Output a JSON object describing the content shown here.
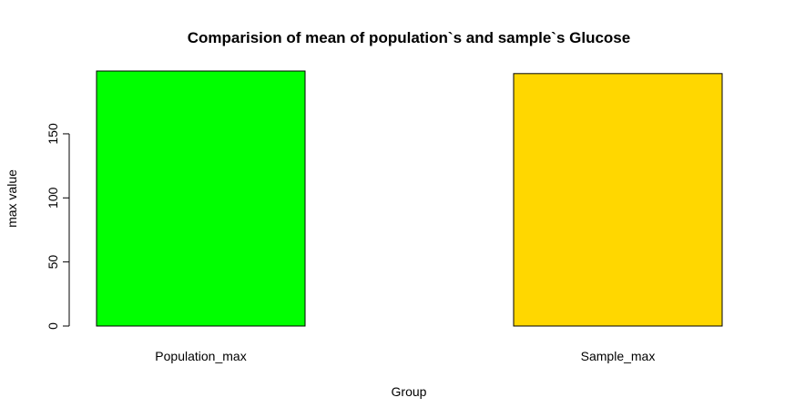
{
  "chart_data": {
    "type": "bar",
    "title": "Comparision of mean of population`s and sample`s Glucose",
    "xlabel": "Group",
    "ylabel": "max value",
    "categories": [
      "Population_max",
      "Sample_max"
    ],
    "values": [
      199,
      197
    ],
    "colors": [
      "#00ff00",
      "#ffd700"
    ],
    "yticks": [
      0,
      50,
      100,
      150
    ],
    "ylim": [
      0,
      199
    ],
    "grid": false,
    "legend": "none"
  }
}
